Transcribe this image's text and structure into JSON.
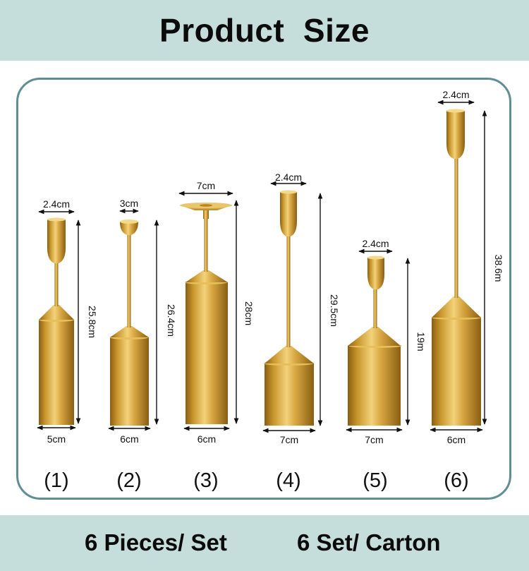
{
  "title": "Product  Size",
  "footer": {
    "left": "6 Pieces/ Set",
    "right": "6 Set/ Carton"
  },
  "holders": [
    {
      "number": "(1)",
      "top": "2.4cm",
      "height": "25.8cm",
      "base": "5cm"
    },
    {
      "number": "(2)",
      "top": "3cm",
      "height": "26.4cm",
      "base": "6cm"
    },
    {
      "number": "(3)",
      "top": "7cm",
      "height": "28cm",
      "base": "6cm"
    },
    {
      "number": "(4)",
      "top": "2.4cm",
      "height": "29.5cm",
      "base": "7cm"
    },
    {
      "number": "(5)",
      "top": "2.4cm",
      "height": "19m",
      "base": "7cm"
    },
    {
      "number": "(6)",
      "top": "2.4cm",
      "height": "38.6m",
      "base": "6cm"
    }
  ],
  "colors": {
    "band": "#c5dddb",
    "frame": "#5f8f92",
    "gold": "#c99a2e"
  }
}
